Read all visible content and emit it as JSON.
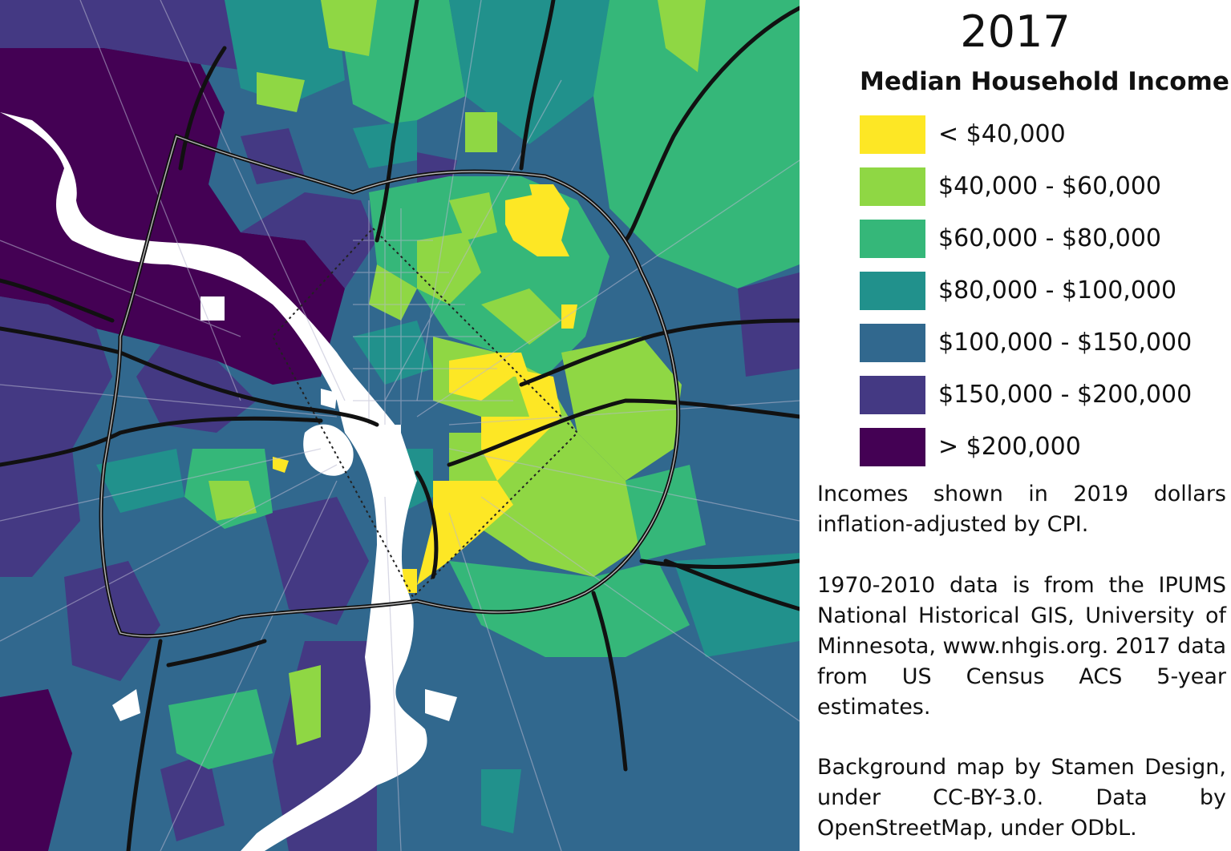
{
  "title": "2017",
  "legend": {
    "title": "Median Household Income",
    "items": [
      {
        "label": "< $40,000",
        "color": "#fde725"
      },
      {
        "label": "$40,000 - $60,000",
        "color": "#8fd744"
      },
      {
        "label": "$60,000 - $80,000",
        "color": "#35b779"
      },
      {
        "label": "$80,000 - $100,000",
        "color": "#21918c"
      },
      {
        "label": "$100,000 - $150,000",
        "color": "#31688e"
      },
      {
        "label": "$150,000 - $200,000",
        "color": "#443983"
      },
      {
        "label": "> $200,000",
        "color": "#440154"
      }
    ]
  },
  "notes": {
    "adjustment": "Incomes shown in 2019 dollars inflation-adjusted by CPI.",
    "sources": "1970-2010 data is from the IPUMS National Historical GIS, University of Minnesota, www.nhgis.org. 2017 data from US Census ACS 5-year estimates.",
    "credits": "Background map by Stamen Design, under CC-BY-3.0. Data by OpenStreetMap, under ODbL."
  }
}
